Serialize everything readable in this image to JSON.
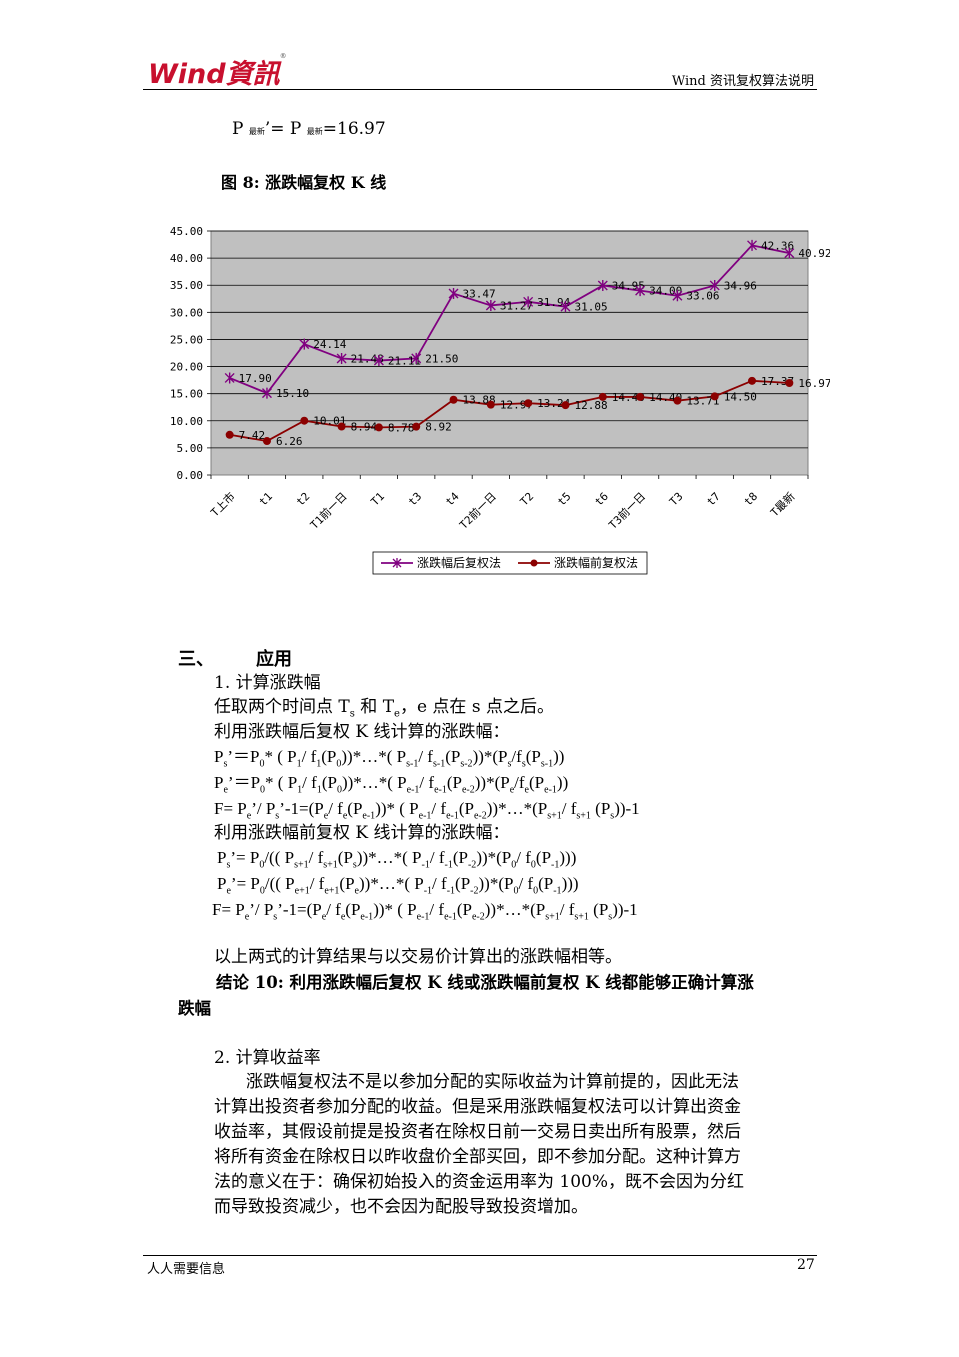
{
  "header": {
    "logo_text": "Wind資訊",
    "logo_reg": "®",
    "doc_title": "Wind 资讯复权算法说明"
  },
  "intro_formula": {
    "p1": "P",
    "sub1": "最新",
    "mid": "’= P",
    "sub2": "最新",
    "rest": "=16.97"
  },
  "figure": {
    "title": "图 8:  涨跌幅复权 K 线"
  },
  "chart_data": {
    "type": "line",
    "categories": [
      "T上市",
      "t1",
      "t2",
      "T1前一日",
      "T1",
      "t3",
      "t4",
      "T2前一日",
      "T2",
      "t5",
      "t6",
      "T3前一日",
      "T3",
      "t7",
      "t8",
      "T最新"
    ],
    "ylim": [
      0,
      45
    ],
    "yticks": [
      "0.00",
      "5.00",
      "10.00",
      "15.00",
      "20.00",
      "25.00",
      "30.00",
      "35.00",
      "40.00",
      "45.00"
    ],
    "series": [
      {
        "name": "涨跌幅后复权法",
        "color": "#800080",
        "marker": "star",
        "values": [
          17.9,
          15.1,
          24.14,
          21.48,
          21.11,
          21.5,
          33.47,
          31.27,
          31.94,
          31.05,
          34.95,
          34.0,
          33.06,
          34.96,
          42.36,
          40.92
        ],
        "labels": [
          "17.90",
          "15.10",
          "24.14",
          "21.48",
          "21.11",
          "21.50",
          "33.47",
          "31.27",
          "31.94",
          "31.05",
          "34.95",
          "34.00",
          "33.06",
          "34.96",
          "42.36",
          "40.92"
        ]
      },
      {
        "name": "涨跌幅前复权法",
        "color": "#8b0000",
        "marker": "circle",
        "values": [
          7.42,
          6.26,
          10.01,
          8.94,
          8.78,
          8.92,
          13.88,
          12.97,
          13.24,
          12.88,
          14.4,
          14.4,
          13.71,
          14.5,
          17.37,
          16.97
        ],
        "labels": [
          "7.42",
          "6.26",
          "10.01",
          "8.94",
          "8.78",
          "8.92",
          "13.88",
          "12.97",
          "13.24",
          "12.88",
          "14.40",
          "14.40",
          "13.71",
          "14.50",
          "17.37",
          "16.97"
        ]
      }
    ],
    "grid": true,
    "legend": "bottom"
  },
  "section": {
    "number": "三、",
    "title": "应用"
  },
  "sub1": {
    "heading": "1.  计算涨跌幅",
    "line1": "任取两个时间点 T",
    "line1_s": "s",
    "line1_mid": " 和 T",
    "line1_e": "e",
    "line1_end": "，e 点在 s 点之后。",
    "line2": "利用涨跌幅后复权 K 线计算的涨跌幅：",
    "line_pre": "利用涨跌幅前复权 K 线计算的涨跌幅：",
    "equal_note": "以上两式的计算结果与以交易价计算出的涨跌幅相等。",
    "conclusion_a": "结论 10: 利用涨跌幅后复权 K 线或涨跌幅前复权 K 线都能够正确计算涨",
    "conclusion_b": "跌幅"
  },
  "sub2": {
    "heading": "2.  计算收益率",
    "para": [
      "涨跌幅复权法不是以参加分配的实际收益为计算前提的，因此无法",
      "计算出投资者参加分配的收益。但是采用涨跌幅复权法可以计算出资金",
      "收益率，其假设前提是投资者在除权日前一交易日卖出所有股票，然后",
      "将所有资金在除权日以昨收盘价全部买回，即不参加分配。这种计算方",
      "法的意义在于：确保初始投入的资金运用率为  100%，既不会因为分红",
      "而导致投资减少，也不会因为配股导致投资增加。"
    ]
  },
  "footer": {
    "left": "人人需要信息",
    "page": "27"
  }
}
